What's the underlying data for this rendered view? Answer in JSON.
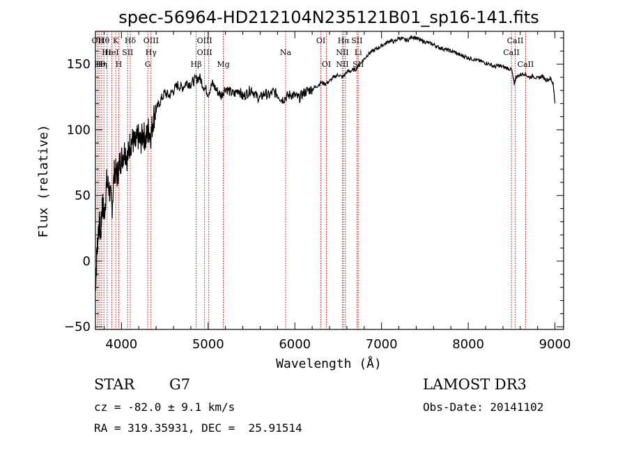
{
  "chart_data": {
    "type": "line",
    "title": "spec-56964-HD212104N235121B01_sp16-141.fits",
    "xlabel": "Wavelength (Å)",
    "ylabel": "Flux (relative)",
    "xlim": [
      3700,
      9100
    ],
    "ylim": [
      -52,
      175
    ],
    "xticks": [
      4000,
      5000,
      6000,
      7000,
      8000,
      9000
    ],
    "yticks": [
      -50,
      0,
      50,
      100,
      150
    ],
    "grid": false,
    "line_color": "#000000",
    "marker_color": "#cc0000",
    "series": [
      {
        "x": [
          3700,
          3720,
          3740,
          3760,
          3780,
          3800,
          3830,
          3860,
          3890,
          3920,
          3950,
          3980,
          4010,
          4040,
          4070,
          4100,
          4130,
          4160,
          4190,
          4220,
          4250,
          4280,
          4310,
          4340,
          4370,
          4400,
          4450,
          4500,
          4550,
          4600,
          4650,
          4700,
          4750,
          4800,
          4850,
          4900,
          4950,
          5000,
          5050,
          5100,
          5150,
          5200,
          5250,
          5300,
          5350,
          5400,
          5450,
          5500,
          5550,
          5600,
          5650,
          5700,
          5750,
          5800,
          5850,
          5900,
          5950,
          6000,
          6050,
          6100,
          6150,
          6200,
          6250,
          6300,
          6350,
          6400,
          6450,
          6500,
          6550,
          6600,
          6650,
          6700,
          6750,
          6800,
          6850,
          6900,
          6950,
          7000,
          7050,
          7100,
          7150,
          7200,
          7250,
          7300,
          7350,
          7400,
          7450,
          7500,
          7550,
          7600,
          7650,
          7700,
          7750,
          7800,
          7850,
          7900,
          7950,
          8000,
          8050,
          8100,
          8150,
          8200,
          8250,
          8300,
          8350,
          8400,
          8450,
          8500,
          8530,
          8550,
          8600,
          8650,
          8700,
          8750,
          8800,
          8850,
          8900,
          8950,
          8980,
          9000
        ],
        "y": [
          -20,
          10,
          30,
          20,
          45,
          35,
          60,
          55,
          40,
          70,
          65,
          75,
          80,
          85,
          78,
          90,
          92,
          88,
          95,
          90,
          98,
          92,
          100,
          96,
          110,
          115,
          122,
          128,
          126,
          130,
          134,
          132,
          136,
          135,
          138,
          140,
          133,
          128,
          135,
          130,
          126,
          132,
          129,
          127,
          131,
          125,
          128,
          131,
          126,
          124,
          128,
          126,
          129,
          127,
          123,
          125,
          127,
          126,
          124,
          128,
          130,
          131,
          133,
          136,
          135,
          137,
          140,
          142,
          140,
          144,
          145,
          146,
          150,
          154,
          158,
          160,
          162,
          164,
          166,
          168,
          167,
          170,
          169,
          168,
          171,
          170,
          168,
          167,
          166,
          165,
          163,
          162,
          161,
          160,
          159,
          157,
          156,
          155,
          154,
          153,
          152,
          151,
          150,
          148,
          149,
          148,
          147,
          146,
          135,
          140,
          142,
          143,
          140,
          141,
          139,
          141,
          138,
          139,
          135,
          120
        ]
      }
    ],
    "lines": [
      {
        "wl": 3727,
        "labels": [
          "OII"
        ]
      },
      {
        "wl": 3750,
        "labels": [
          "",
          "",
          "Hθ"
        ]
      },
      {
        "wl": 3771,
        "labels": [
          "",
          "",
          "Hη"
        ]
      },
      {
        "wl": 3798,
        "labels": [
          "Hθ"
        ]
      },
      {
        "wl": 3835,
        "labels": [
          "",
          "Hε"
        ]
      },
      {
        "wl": 3889,
        "labels": [
          "",
          "HeI"
        ]
      },
      {
        "wl": 3934,
        "labels": [
          "K"
        ]
      },
      {
        "wl": 3969,
        "labels": [
          "",
          "",
          "H"
        ]
      },
      {
        "wl": 4072,
        "labels": [
          "",
          "SII"
        ]
      },
      {
        "wl": 4102,
        "labels": [
          "Hδ"
        ]
      },
      {
        "wl": 4304,
        "labels": [
          "",
          "",
          "G"
        ]
      },
      {
        "wl": 4341,
        "labels": [
          "OIII",
          "Hγ"
        ]
      },
      {
        "wl": 4861,
        "labels": [
          "",
          "",
          "Hβ"
        ]
      },
      {
        "wl": 4959,
        "labels": [
          "OIII",
          "OIII"
        ]
      },
      {
        "wl": 5007,
        "labels": []
      },
      {
        "wl": 5175,
        "labels": [
          "",
          "",
          "Mg"
        ]
      },
      {
        "wl": 5894,
        "labels": [
          "",
          "Na"
        ]
      },
      {
        "wl": 6300,
        "labels": [
          "OI"
        ]
      },
      {
        "wl": 6364,
        "labels": [
          "",
          "",
          "OI"
        ]
      },
      {
        "wl": 6548,
        "labels": [
          "",
          "NII",
          "NII"
        ]
      },
      {
        "wl": 6563,
        "labels": [
          "Hα"
        ]
      },
      {
        "wl": 6583,
        "labels": []
      },
      {
        "wl": 6716,
        "labels": [
          "SII"
        ]
      },
      {
        "wl": 6731,
        "labels": [
          "",
          "Li",
          "SII"
        ]
      },
      {
        "wl": 8498,
        "labels": [
          "",
          "CaII"
        ]
      },
      {
        "wl": 8542,
        "labels": [
          "CaII"
        ]
      },
      {
        "wl": 8662,
        "labels": [
          "",
          "",
          "CaII"
        ]
      }
    ]
  },
  "info": {
    "star_class": "STAR",
    "subclass": "G7",
    "survey": "LAMOST DR3",
    "cz": "cz = -82.0 ± 9.1 km/s",
    "obs_date": "Obs-Date: 20141102",
    "radec": "RA = 319.35931, DEC =  25.91514"
  }
}
